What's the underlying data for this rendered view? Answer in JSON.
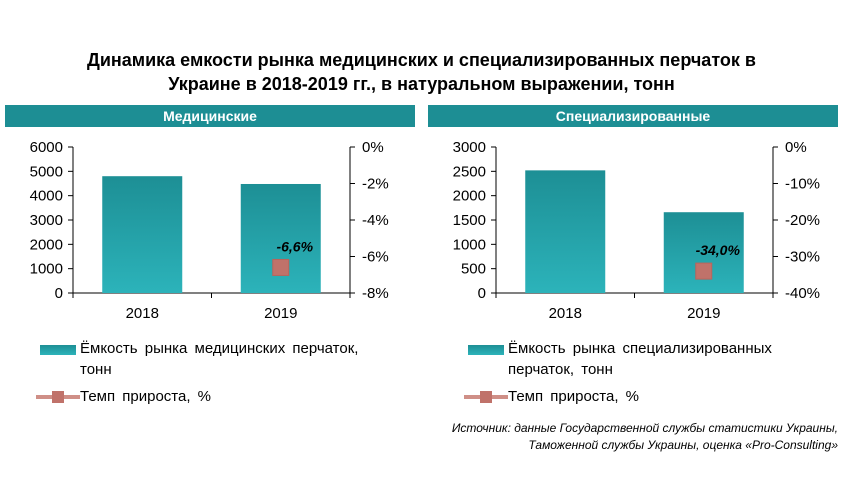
{
  "title_line1": "Динамика емкости рынка медицинских и специализированных перчаток в",
  "title_line2": "Украине в 2018-2019 гг., в натуральном выражении, тонн",
  "colors": {
    "header_bg": "#1d8e94",
    "bar_top": "#1d8f95",
    "bar_bottom": "#2cb3ba",
    "marker": "#c0726a",
    "marker_line": "#cf8f87"
  },
  "chart_data": [
    {
      "type": "bar",
      "panel_title": "Медицинские",
      "categories": [
        "2018",
        "2019"
      ],
      "series": [
        {
          "name": "Ёмкость рынка медицинских перчаток, тонн",
          "values": [
            4800,
            4480
          ],
          "axis": "left"
        },
        {
          "name": "Темп прироста, %",
          "type": "line",
          "values": [
            null,
            -6.6
          ],
          "axis": "right",
          "data_labels": [
            null,
            "-6,6%"
          ]
        }
      ],
      "ylim_left": [
        0,
        6000
      ],
      "yticks_left": [
        "0",
        "1000",
        "2000",
        "3000",
        "4000",
        "5000",
        "6000"
      ],
      "ylim_right": [
        -8,
        0
      ],
      "yticks_right": [
        "-8%",
        "-6%",
        "-4%",
        "-2%",
        "0%"
      ]
    },
    {
      "type": "bar",
      "panel_title": "Специализированные",
      "categories": [
        "2018",
        "2019"
      ],
      "series": [
        {
          "name": "Ёмкость рынка специализированных перчаток, тонн",
          "values": [
            2520,
            1660
          ],
          "axis": "left"
        },
        {
          "name": "Темп прироста, %",
          "type": "line",
          "values": [
            null,
            -34.0
          ],
          "axis": "right",
          "data_labels": [
            null,
            "-34,0%"
          ]
        }
      ],
      "ylim_left": [
        0,
        3000
      ],
      "yticks_left": [
        "0",
        "500",
        "1000",
        "1500",
        "2000",
        "2500",
        "3000"
      ],
      "ylim_right": [
        -40,
        0
      ],
      "yticks_right": [
        "-40%",
        "-30%",
        "-20%",
        "-10%",
        "0%"
      ]
    }
  ],
  "legend_left": {
    "bar_line1": "Ёмкость рынка медицинских перчаток,",
    "bar_line2": "тонн",
    "growth": "Темп прироста, %"
  },
  "legend_right": {
    "bar_line1": "Ёмкость рынка специализированных",
    "bar_line2": "перчаток, тонн",
    "growth": "Темп прироста, %"
  },
  "source_line1": "Источник: данные Государственной службы статистики Украины,",
  "source_line2": "Таможенной службы Украины, оценка «Pro-Consulting»"
}
